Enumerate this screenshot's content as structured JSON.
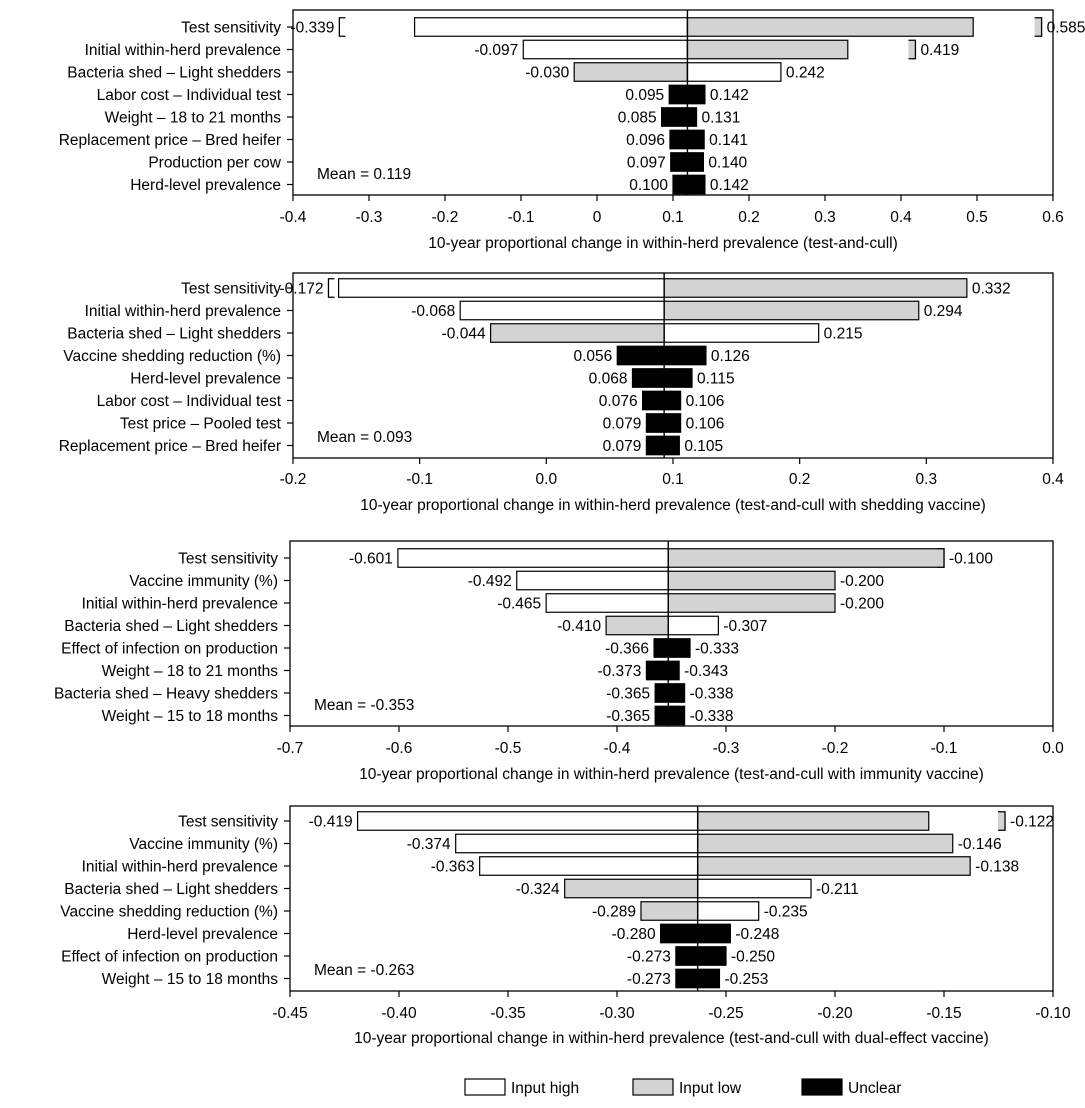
{
  "chart_data": [
    {
      "type": "tornado",
      "mean": 0.119,
      "mean_label": "Mean = 0.119",
      "xlim": [
        -0.4,
        0.6
      ],
      "ticks": [
        -0.4,
        -0.3,
        -0.2,
        -0.1,
        0,
        0.1,
        0.2,
        0.3,
        0.4,
        0.5,
        0.6
      ],
      "tick_labels": [
        "-0.4",
        "-0.3",
        "-0.2",
        "-0.1",
        "0",
        "0.1",
        "0.2",
        "0.3",
        "0.4",
        "0.5",
        "0.6"
      ],
      "xlabel": "10-year proportional change in within-herd prevalence (test-and-cull)",
      "rows": [
        {
          "label": "Test sensitivity",
          "low": -0.339,
          "high": 0.585,
          "low_text": "-0.339",
          "high_text": "0.585",
          "left_fill": "high",
          "right_fill": "low",
          "bar_low": -0.24,
          "bar_high": 0.495,
          "left_bracket": true,
          "right_bracket": true
        },
        {
          "label": "Initial within-herd prevalence",
          "low": -0.097,
          "high": 0.419,
          "low_text": "-0.097",
          "high_text": "0.419",
          "left_fill": "high",
          "right_fill": "low",
          "bar_low": -0.097,
          "bar_high": 0.33,
          "left_bracket": false,
          "right_bracket": true
        },
        {
          "label": "Bacteria shed – Light shedders",
          "low": -0.03,
          "high": 0.242,
          "low_text": "-0.030",
          "high_text": "0.242",
          "left_fill": "low",
          "right_fill": "high"
        },
        {
          "label": "Labor cost – Individual test",
          "low": 0.095,
          "high": 0.142,
          "low_text": "0.095",
          "high_text": "0.142",
          "left_fill": "unclear",
          "right_fill": "unclear"
        },
        {
          "label": "Weight – 18 to 21 months",
          "low": 0.085,
          "high": 0.131,
          "low_text": "0.085",
          "high_text": "0.131",
          "left_fill": "unclear",
          "right_fill": "unclear"
        },
        {
          "label": "Replacement price – Bred heifer",
          "low": 0.096,
          "high": 0.141,
          "low_text": "0.096",
          "high_text": "0.141",
          "left_fill": "unclear",
          "right_fill": "unclear"
        },
        {
          "label": "Production per cow",
          "low": 0.097,
          "high": 0.14,
          "low_text": "0.097",
          "high_text": "0.140",
          "left_fill": "unclear",
          "right_fill": "unclear"
        },
        {
          "label": "Herd-level prevalence",
          "low": 0.1,
          "high": 0.142,
          "low_text": "0.100",
          "high_text": "0.142",
          "left_fill": "unclear",
          "right_fill": "unclear"
        }
      ]
    },
    {
      "type": "tornado",
      "mean": 0.093,
      "mean_label": "Mean = 0.093",
      "xlim": [
        -0.2,
        0.4
      ],
      "ticks": [
        -0.2,
        -0.1,
        0,
        0.1,
        0.2,
        0.3,
        0.4
      ],
      "tick_labels": [
        "-0.2",
        "-0.1",
        "0.0",
        "0.1",
        "0.2",
        "0.3",
        "0.4"
      ],
      "xlabel": "10-year proportional change in within-herd prevalence (test-and-cull with shedding vaccine)",
      "rows": [
        {
          "label": "Test sensitivity",
          "low": -0.172,
          "high": 0.332,
          "low_text": "-0.172",
          "high_text": "0.332",
          "left_fill": "high",
          "right_fill": "low",
          "bar_low": -0.164,
          "left_bracket": true,
          "right_bracket": false
        },
        {
          "label": "Initial within-herd prevalence",
          "low": -0.068,
          "high": 0.294,
          "low_text": "-0.068",
          "high_text": "0.294",
          "left_fill": "high",
          "right_fill": "low"
        },
        {
          "label": "Bacteria shed – Light shedders",
          "low": -0.044,
          "high": 0.215,
          "low_text": "-0.044",
          "high_text": "0.215",
          "left_fill": "low",
          "right_fill": "high"
        },
        {
          "label": "Vaccine shedding reduction (%)",
          "low": 0.056,
          "high": 0.126,
          "low_text": "0.056",
          "high_text": "0.126",
          "left_fill": "unclear",
          "right_fill": "unclear"
        },
        {
          "label": "Herd-level prevalence",
          "low": 0.068,
          "high": 0.115,
          "low_text": "0.068",
          "high_text": "0.115",
          "left_fill": "unclear",
          "right_fill": "unclear"
        },
        {
          "label": "Labor cost – Individual test",
          "low": 0.076,
          "high": 0.106,
          "low_text": "0.076",
          "high_text": "0.106",
          "left_fill": "unclear",
          "right_fill": "unclear"
        },
        {
          "label": "Test price – Pooled test",
          "low": 0.079,
          "high": 0.106,
          "low_text": "0.079",
          "high_text": "0.106",
          "left_fill": "unclear",
          "right_fill": "unclear"
        },
        {
          "label": "Replacement price – Bred heifer",
          "low": 0.079,
          "high": 0.105,
          "low_text": "0.079",
          "high_text": "0.105",
          "left_fill": "unclear",
          "right_fill": "unclear"
        }
      ]
    },
    {
      "type": "tornado",
      "mean": -0.353,
      "mean_label": "Mean = -0.353",
      "xlim": [
        -0.7,
        0.0
      ],
      "ticks": [
        -0.7,
        -0.6,
        -0.5,
        -0.4,
        -0.3,
        -0.2,
        -0.1,
        0.0
      ],
      "tick_labels": [
        "-0.7",
        "-0.6",
        "-0.5",
        "-0.4",
        "-0.3",
        "-0.2",
        "-0.1",
        "0.0"
      ],
      "xlabel": "10-year proportional change in within-herd prevalence (test-and-cull with immunity vaccine)",
      "rows": [
        {
          "label": "Test sensitivity",
          "low": -0.601,
          "high": -0.1,
          "low_text": "-0.601",
          "high_text": "-0.100",
          "left_fill": "high",
          "right_fill": "low",
          "bar_high": -0.1,
          "left_bracket": false,
          "right_bracket": true
        },
        {
          "label": "Vaccine immunity (%)",
          "low": -0.492,
          "high": -0.2,
          "low_text": "-0.492",
          "high_text": "-0.200",
          "left_fill": "high",
          "right_fill": "low"
        },
        {
          "label": "Initial within-herd prevalence",
          "low": -0.465,
          "high": -0.2,
          "low_text": "-0.465",
          "high_text": "-0.200",
          "left_fill": "high",
          "right_fill": "low"
        },
        {
          "label": "Bacteria shed – Light shedders",
          "low": -0.41,
          "high": -0.307,
          "low_text": "-0.410",
          "high_text": "-0.307",
          "left_fill": "low",
          "right_fill": "high"
        },
        {
          "label": "Effect of infection on production",
          "low": -0.366,
          "high": -0.333,
          "low_text": "-0.366",
          "high_text": "-0.333",
          "left_fill": "unclear",
          "right_fill": "unclear"
        },
        {
          "label": "Weight – 18 to 21 months",
          "low": -0.373,
          "high": -0.343,
          "low_text": "-0.373",
          "high_text": "-0.343",
          "left_fill": "unclear",
          "right_fill": "unclear"
        },
        {
          "label": "Bacteria shed – Heavy shedders",
          "low": -0.365,
          "high": -0.338,
          "low_text": "-0.365",
          "high_text": "-0.338",
          "left_fill": "unclear",
          "right_fill": "unclear"
        },
        {
          "label": "Weight – 15 to 18 months",
          "low": -0.365,
          "high": -0.338,
          "low_text": "-0.365",
          "high_text": "-0.338",
          "left_fill": "unclear",
          "right_fill": "unclear"
        }
      ]
    },
    {
      "type": "tornado",
      "mean": -0.263,
      "mean_label": "Mean = -0.263",
      "xlim": [
        -0.45,
        -0.1
      ],
      "ticks": [
        -0.45,
        -0.4,
        -0.35,
        -0.3,
        -0.25,
        -0.2,
        -0.15,
        -0.1
      ],
      "tick_labels": [
        "-0.45",
        "-0.40",
        "-0.35",
        "-0.30",
        "-0.25",
        "-0.20",
        "-0.15",
        "-0.10"
      ],
      "xlabel": "10-year proportional change in within-herd prevalence (test-and-cull with dual-effect vaccine)",
      "rows": [
        {
          "label": "Test sensitivity",
          "low": -0.419,
          "high": -0.122,
          "low_text": "-0.419",
          "high_text": "-0.122",
          "left_fill": "high",
          "right_fill": "low",
          "bar_high": -0.157,
          "left_bracket": false,
          "right_bracket": true
        },
        {
          "label": "Vaccine immunity (%)",
          "low": -0.374,
          "high": -0.146,
          "low_text": "-0.374",
          "high_text": "-0.146",
          "left_fill": "high",
          "right_fill": "low"
        },
        {
          "label": "Initial within-herd prevalence",
          "low": -0.363,
          "high": -0.138,
          "low_text": "-0.363",
          "high_text": "-0.138",
          "left_fill": "high",
          "right_fill": "low"
        },
        {
          "label": "Bacteria shed – Light shedders",
          "low": -0.324,
          "high": -0.211,
          "low_text": "-0.324",
          "high_text": "-0.211",
          "left_fill": "low",
          "right_fill": "high"
        },
        {
          "label": "Vaccine shedding reduction (%)",
          "low": -0.289,
          "high": -0.235,
          "low_text": "-0.289",
          "high_text": "-0.235",
          "left_fill": "low",
          "right_fill": "high"
        },
        {
          "label": "Herd-level prevalence",
          "low": -0.28,
          "high": -0.248,
          "low_text": "-0.280",
          "high_text": "-0.248",
          "left_fill": "unclear",
          "right_fill": "unclear"
        },
        {
          "label": "Effect of infection on production",
          "low": -0.273,
          "high": -0.25,
          "low_text": "-0.273",
          "high_text": "-0.250",
          "left_fill": "unclear",
          "right_fill": "unclear"
        },
        {
          "label": "Weight – 15 to 18 months",
          "low": -0.273,
          "high": -0.253,
          "low_text": "-0.273",
          "high_text": "-0.253",
          "left_fill": "unclear",
          "right_fill": "unclear"
        }
      ]
    }
  ],
  "legend": {
    "position": "bottom-center",
    "items": [
      {
        "key": "high",
        "label": "Input high",
        "color": "#ffffff"
      },
      {
        "key": "low",
        "label": "Input low",
        "color": "#d3d3d3"
      },
      {
        "key": "unclear",
        "label": "Unclear",
        "color": "#000000"
      }
    ]
  }
}
